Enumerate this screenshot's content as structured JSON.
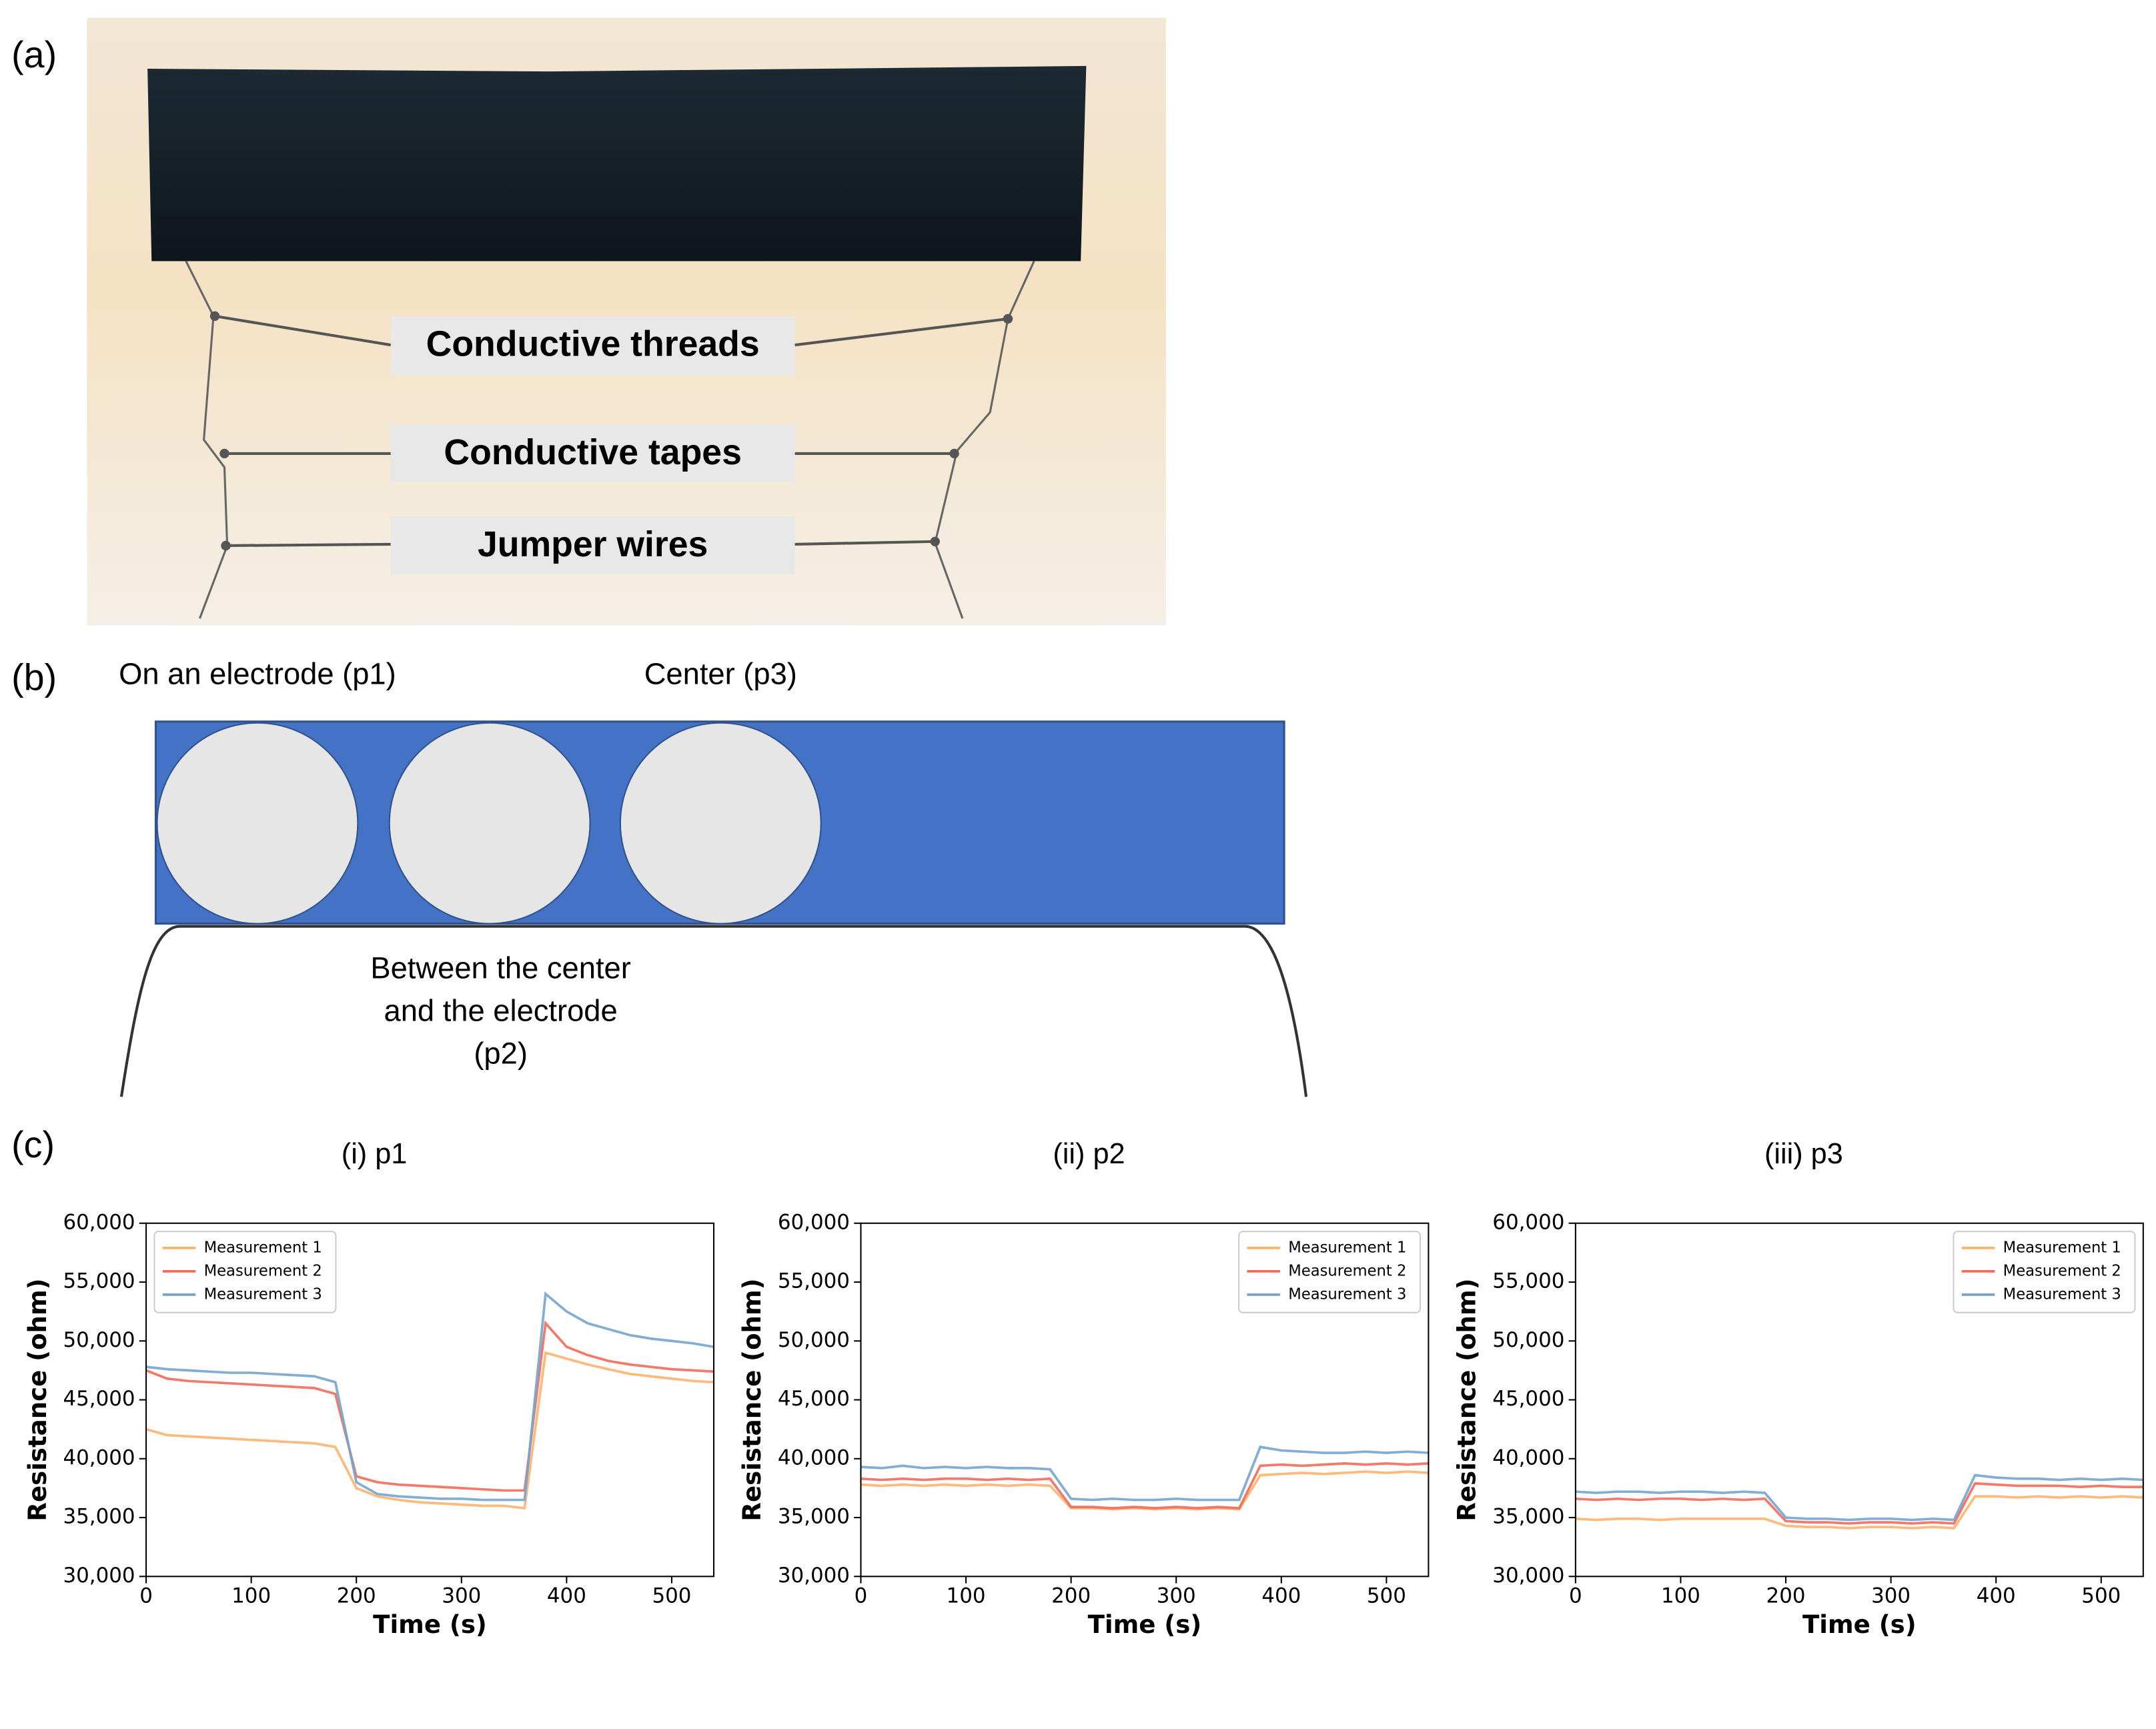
{
  "panel_labels": [
    "(a)",
    "(b)",
    "(c)"
  ],
  "photo": {
    "labels": [
      "Conductive threads",
      "Conductive tapes",
      "Jumper wires"
    ]
  },
  "diagram": {
    "top_labels": [
      "On an electrode (p1)",
      "Center (p3)"
    ],
    "bottom_label": [
      "Between the center",
      "and the electrode",
      "(p2)"
    ]
  },
  "chart_data": [
    {
      "type": "line",
      "title": "(i) p1",
      "x_label": "Time (s)",
      "y_label": "Resistance (ohm)",
      "legend": "upper left",
      "x": [
        0,
        20,
        40,
        60,
        80,
        100,
        120,
        140,
        160,
        180,
        200,
        220,
        240,
        260,
        280,
        300,
        320,
        340,
        360,
        380,
        400,
        420,
        440,
        460,
        480,
        500,
        520,
        540
      ],
      "xlim": [
        0,
        540
      ],
      "xticks": [
        0,
        100,
        200,
        300,
        400,
        500
      ],
      "ylim": [
        30000,
        60000
      ],
      "yticks": [
        {
          "value": 30000,
          "label": "30,000"
        },
        {
          "value": 35000,
          "label": "35,000"
        },
        {
          "value": 40000,
          "label": "40,000"
        },
        {
          "value": 45000,
          "label": "45,000"
        },
        {
          "value": 50000,
          "label": "50,000"
        },
        {
          "value": 55000,
          "label": "55,000"
        },
        {
          "value": 60000,
          "label": "60,000"
        }
      ],
      "series": [
        {
          "name": "Measurement 1",
          "color": "#fdb36b",
          "values": [
            42500,
            42000,
            41900,
            41800,
            41700,
            41600,
            41500,
            41400,
            41300,
            41000,
            37500,
            36800,
            36500,
            36300,
            36200,
            36100,
            36000,
            36000,
            35800,
            49000,
            48500,
            48000,
            47600,
            47200,
            47000,
            46800,
            46600,
            46500
          ]
        },
        {
          "name": "Measurement 2",
          "color": "#f26b5b",
          "values": [
            47500,
            46800,
            46600,
            46500,
            46400,
            46300,
            46200,
            46100,
            46000,
            45500,
            38500,
            38000,
            37800,
            37700,
            37600,
            37500,
            37400,
            37300,
            37300,
            51500,
            49500,
            48800,
            48300,
            48000,
            47800,
            47600,
            47500,
            47400
          ]
        },
        {
          "name": "Measurement 3",
          "color": "#74a4cf",
          "values": [
            47800,
            47600,
            47500,
            47400,
            47300,
            47300,
            47200,
            47100,
            47000,
            46500,
            38000,
            37000,
            36800,
            36700,
            36600,
            36600,
            36500,
            36500,
            36500,
            54000,
            52500,
            51500,
            51000,
            50500,
            50200,
            50000,
            49800,
            49500
          ]
        }
      ]
    },
    {
      "type": "line",
      "title": "(ii) p2",
      "x_label": "Time (s)",
      "y_label": "Resistance (ohm)",
      "legend": "upper right",
      "x": [
        0,
        20,
        40,
        60,
        80,
        100,
        120,
        140,
        160,
        180,
        200,
        220,
        240,
        260,
        280,
        300,
        320,
        340,
        360,
        380,
        400,
        420,
        440,
        460,
        480,
        500,
        520,
        540
      ],
      "xlim": [
        0,
        540
      ],
      "xticks": [
        0,
        100,
        200,
        300,
        400,
        500
      ],
      "ylim": [
        30000,
        60000
      ],
      "yticks": [
        {
          "value": 30000,
          "label": "30,000"
        },
        {
          "value": 35000,
          "label": "35,000"
        },
        {
          "value": 40000,
          "label": "40,000"
        },
        {
          "value": 45000,
          "label": "45,000"
        },
        {
          "value": 50000,
          "label": "50,000"
        },
        {
          "value": 55000,
          "label": "55,000"
        },
        {
          "value": 60000,
          "label": "60,000"
        }
      ],
      "series": [
        {
          "name": "Measurement 1",
          "color": "#fdb36b",
          "values": [
            37800,
            37700,
            37800,
            37700,
            37800,
            37700,
            37800,
            37700,
            37800,
            37700,
            35800,
            35800,
            35700,
            35800,
            35700,
            35800,
            35700,
            35800,
            35700,
            38600,
            38700,
            38800,
            38700,
            38800,
            38900,
            38800,
            38900,
            38800
          ]
        },
        {
          "name": "Measurement 2",
          "color": "#f26b5b",
          "values": [
            38300,
            38200,
            38300,
            38200,
            38300,
            38300,
            38200,
            38300,
            38200,
            38300,
            35900,
            35900,
            35800,
            35900,
            35800,
            35900,
            35800,
            35900,
            35800,
            39400,
            39500,
            39400,
            39500,
            39600,
            39500,
            39600,
            39500,
            39600
          ]
        },
        {
          "name": "Measurement 3",
          "color": "#74a4cf",
          "values": [
            39300,
            39200,
            39400,
            39200,
            39300,
            39200,
            39300,
            39200,
            39200,
            39100,
            36600,
            36500,
            36600,
            36500,
            36500,
            36600,
            36500,
            36500,
            36500,
            41000,
            40700,
            40600,
            40500,
            40500,
            40600,
            40500,
            40600,
            40500
          ]
        }
      ]
    },
    {
      "type": "line",
      "title": "(iii) p3",
      "x_label": "Time (s)",
      "y_label": "Resistance (ohm)",
      "legend": "upper right",
      "x": [
        0,
        20,
        40,
        60,
        80,
        100,
        120,
        140,
        160,
        180,
        200,
        220,
        240,
        260,
        280,
        300,
        320,
        340,
        360,
        380,
        400,
        420,
        440,
        460,
        480,
        500,
        520,
        540
      ],
      "xlim": [
        0,
        540
      ],
      "xticks": [
        0,
        100,
        200,
        300,
        400,
        500
      ],
      "ylim": [
        30000,
        60000
      ],
      "yticks": [
        {
          "value": 30000,
          "label": "30,000"
        },
        {
          "value": 35000,
          "label": "35,000"
        },
        {
          "value": 40000,
          "label": "40,000"
        },
        {
          "value": 45000,
          "label": "45,000"
        },
        {
          "value": 50000,
          "label": "50,000"
        },
        {
          "value": 55000,
          "label": "55,000"
        },
        {
          "value": 60000,
          "label": "60,000"
        }
      ],
      "series": [
        {
          "name": "Measurement 1",
          "color": "#fdb36b",
          "values": [
            34900,
            34800,
            34900,
            34900,
            34800,
            34900,
            34900,
            34900,
            34900,
            34900,
            34300,
            34200,
            34200,
            34100,
            34200,
            34200,
            34100,
            34200,
            34100,
            36800,
            36800,
            36700,
            36800,
            36700,
            36800,
            36700,
            36800,
            36700
          ]
        },
        {
          "name": "Measurement 2",
          "color": "#f26b5b",
          "values": [
            36600,
            36500,
            36600,
            36500,
            36600,
            36600,
            36500,
            36600,
            36500,
            36600,
            34700,
            34600,
            34600,
            34500,
            34600,
            34600,
            34500,
            34600,
            34500,
            37900,
            37800,
            37700,
            37700,
            37700,
            37600,
            37700,
            37600,
            37600
          ]
        },
        {
          "name": "Measurement 3",
          "color": "#74a4cf",
          "values": [
            37200,
            37100,
            37200,
            37200,
            37100,
            37200,
            37200,
            37100,
            37200,
            37100,
            35000,
            34900,
            34900,
            34800,
            34900,
            34900,
            34800,
            34900,
            34800,
            38600,
            38400,
            38300,
            38300,
            38200,
            38300,
            38200,
            38300,
            38200
          ]
        }
      ]
    }
  ]
}
